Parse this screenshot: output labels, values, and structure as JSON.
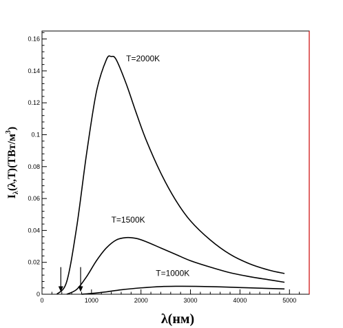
{
  "chart_data": {
    "type": "line",
    "title": "",
    "xlabel": "λ(нм)",
    "ylabel": "I_λ(λ,T)(ТВт/м³)",
    "ylabel_parts": {
      "main": "I",
      "sub": "λ",
      "args": "(λ,T)(ТВт/м",
      "sup": "3",
      "close": ")"
    },
    "xlim": [
      0,
      5400
    ],
    "ylim": [
      0,
      0.165
    ],
    "x_ticks": [
      0,
      1000,
      2000,
      3000,
      4000,
      5000
    ],
    "x_tick_labels": [
      "0",
      "1000",
      "2000",
      "3000",
      "4000",
      "5000"
    ],
    "y_ticks": [
      0,
      0.02,
      0.04,
      0.06,
      0.08,
      0.1,
      0.12,
      0.14,
      0.16
    ],
    "y_tick_labels": [
      "0",
      "0.02",
      "0.04",
      "0.06",
      "0.08",
      "0.1",
      "0.12",
      "0.14",
      "0.16"
    ],
    "grid": false,
    "series": [
      {
        "name": "T=2000K",
        "x": [
          300,
          500,
          700,
          900,
          1100,
          1300,
          1400,
          1500,
          1700,
          1900,
          2100,
          2400,
          2700,
          3000,
          3400,
          3800,
          4200,
          4600,
          4900
        ],
        "y": [
          0.0,
          0.008,
          0.042,
          0.088,
          0.127,
          0.147,
          0.149,
          0.147,
          0.132,
          0.114,
          0.097,
          0.076,
          0.059,
          0.046,
          0.034,
          0.025,
          0.019,
          0.015,
          0.013
        ]
      },
      {
        "name": "T=1500K",
        "x": [
          500,
          700,
          900,
          1100,
          1300,
          1500,
          1700,
          1900,
          2100,
          2400,
          2700,
          3000,
          3400,
          3800,
          4200,
          4600,
          4900
        ],
        "y": [
          0.0,
          0.003,
          0.011,
          0.021,
          0.029,
          0.034,
          0.0355,
          0.035,
          0.033,
          0.029,
          0.025,
          0.021,
          0.017,
          0.0135,
          0.011,
          0.009,
          0.0075
        ]
      },
      {
        "name": "T=1000K",
        "x": [
          800,
          1000,
          1300,
          1600,
          2000,
          2400,
          2800,
          3200,
          3600,
          4000,
          4400,
          4900
        ],
        "y": [
          0.0,
          0.0005,
          0.0015,
          0.0028,
          0.004,
          0.0048,
          0.005,
          0.0049,
          0.0046,
          0.0042,
          0.0038,
          0.0033
        ]
      }
    ],
    "labels": [
      {
        "text": "T=2000K",
        "x": 1700,
        "y": 0.146
      },
      {
        "text": "T=1500K",
        "x": 1400,
        "y": 0.045
      },
      {
        "text": "T=1000K",
        "x": 2300,
        "y": 0.0115
      }
    ],
    "annotations": [
      {
        "type": "arrow",
        "x": 380,
        "y_from": 0.017,
        "y_to": 0.0015
      },
      {
        "type": "arrow",
        "x": 780,
        "y_from": 0.017,
        "y_to": 0.0015
      }
    ]
  }
}
